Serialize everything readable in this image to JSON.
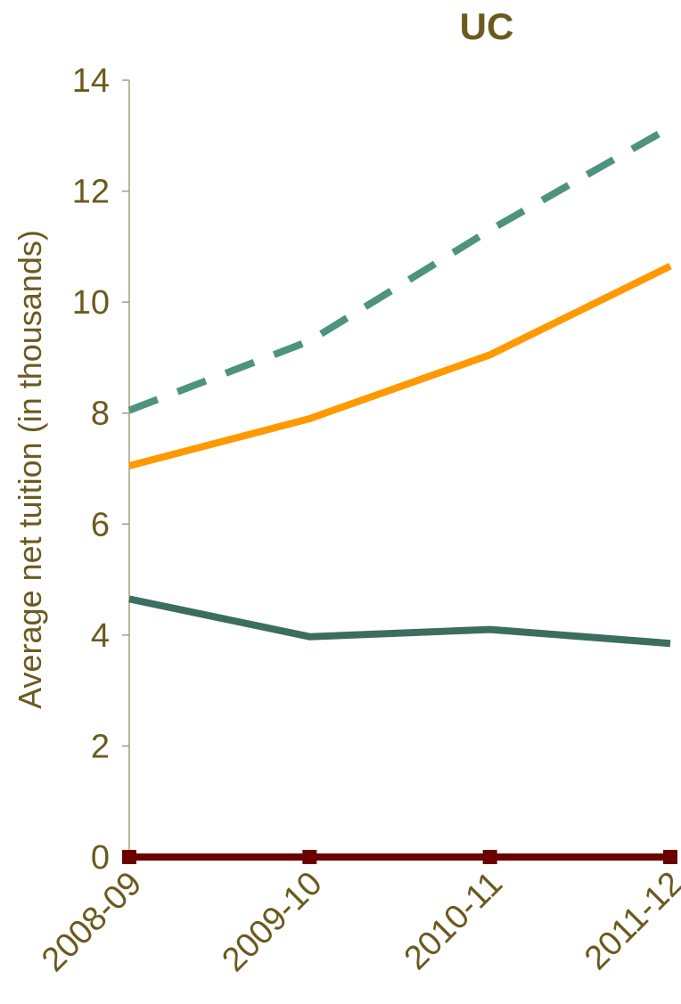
{
  "chart_data": {
    "type": "line",
    "title": "UC",
    "xlabel": "",
    "ylabel": "Average net tuition (in thousands)",
    "categories": [
      "2008-09",
      "2009-10",
      "2010-11",
      "2011-12"
    ],
    "ylim": [
      0,
      14
    ],
    "yticks": [
      "0",
      "2",
      "4",
      "6",
      "8",
      "10",
      "12",
      "14"
    ],
    "grid": false,
    "series": [
      {
        "values": [
          8.05,
          9.3,
          11.3,
          13.15
        ],
        "color": "#4e937d",
        "style": "dashed",
        "markers": false
      },
      {
        "values": [
          7.05,
          7.9,
          9.05,
          10.65
        ],
        "color": "#ff9900",
        "style": "solid",
        "markers": false
      },
      {
        "values": [
          4.65,
          3.97,
          4.1,
          3.85
        ],
        "color": "#3b6e5f",
        "style": "solid",
        "markers": false
      },
      {
        "values": [
          0,
          0,
          0,
          0
        ],
        "color": "#6b0000",
        "style": "solid",
        "markers": true
      }
    ],
    "colors": {
      "text": "#6b5a1e",
      "axis": "#a89a7a"
    }
  }
}
